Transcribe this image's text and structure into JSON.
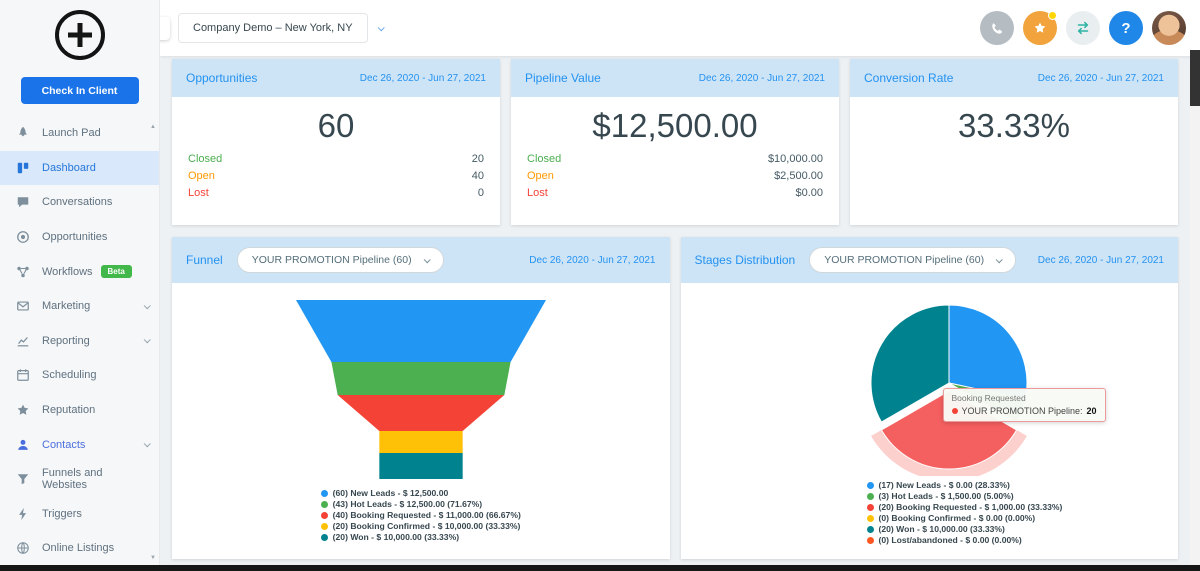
{
  "colors": {
    "accent_blue": "#2492f0",
    "card_header_bg": "#cde4f7",
    "closed": "#4caf50",
    "open": "#ff9800",
    "lost": "#f44336",
    "beta_badge": "#43b84a",
    "check_in_button": "#1a73e8"
  },
  "topbar": {
    "location": "Company Demo – New York, NY",
    "icons": [
      "phone-icon",
      "rewards-icon",
      "switch-accounts-icon",
      "help-icon",
      "avatar"
    ],
    "help_label": "?"
  },
  "sidebar": {
    "check_in_label": "Check In Client",
    "items": [
      {
        "label": "Launch Pad",
        "icon": "rocket-icon"
      },
      {
        "label": "Dashboard",
        "icon": "dashboard-icon",
        "active": true
      },
      {
        "label": "Conversations",
        "icon": "chat-icon"
      },
      {
        "label": "Opportunities",
        "icon": "target-icon"
      },
      {
        "label": "Workflows",
        "icon": "workflow-icon",
        "badge": "Beta"
      },
      {
        "label": "Marketing",
        "icon": "envelope-icon",
        "expandable": true
      },
      {
        "label": "Reporting",
        "icon": "chart-icon",
        "expandable": true
      },
      {
        "label": "Scheduling",
        "icon": "calendar-icon"
      },
      {
        "label": "Reputation",
        "icon": "star-icon"
      },
      {
        "label": "Contacts",
        "icon": "person-icon",
        "expandable": true
      },
      {
        "label": "Funnels and Websites",
        "icon": "funnel-icon"
      },
      {
        "label": "Triggers",
        "icon": "lightning-icon"
      },
      {
        "label": "Online Listings",
        "icon": "globe-icon"
      }
    ]
  },
  "date_range": "Dec 26, 2020 - Jun 27, 2021",
  "stats": [
    {
      "title": "Opportunities",
      "value": "60",
      "rows": [
        {
          "label": "Closed",
          "value": "20"
        },
        {
          "label": "Open",
          "value": "40"
        },
        {
          "label": "Lost",
          "value": "0"
        }
      ]
    },
    {
      "title": "Pipeline Value",
      "value": "$12,500.00",
      "rows": [
        {
          "label": "Closed",
          "value": "$10,000.00"
        },
        {
          "label": "Open",
          "value": "$2,500.00"
        },
        {
          "label": "Lost",
          "value": "$0.00"
        }
      ]
    },
    {
      "title": "Conversion Rate",
      "value": "33.33%"
    }
  ],
  "funnel_card": {
    "title": "Funnel",
    "selector": "YOUR PROMOTION Pipeline (60)",
    "legend": [
      "(60) New Leads - $ 12,500.00",
      "(43) Hot Leads - $ 12,500.00 (71.67%)",
      "(40) Booking Requested - $ 11,000.00 (66.67%)",
      "(20) Booking Confirmed - $ 10,000.00 (33.33%)",
      "(20) Won - $ 10,000.00 (33.33%)"
    ]
  },
  "stages_card": {
    "title": "Stages Distribution",
    "selector": "YOUR PROMOTION Pipeline (60)",
    "tooltip": {
      "title": "Booking Requested",
      "series": "YOUR PROMOTION Pipeline:",
      "value": "20"
    },
    "legend": [
      "(17) New Leads - $ 0.00 (28.33%)",
      "(3) Hot Leads - $ 1,500.00 (5.00%)",
      "(20) Booking Requested - $ 1,000.00 (33.33%)",
      "(0) Booking Confirmed - $ 0.00 (0.00%)",
      "(20) Won - $ 10,000.00 (33.33%)",
      "(0) Lost/abandoned - $ 0.00 (0.00%)"
    ]
  },
  "chart_data": [
    {
      "type": "funnel",
      "title": "Funnel",
      "pipeline": "YOUR PROMOTION Pipeline",
      "stages": [
        "New Leads",
        "Hot Leads",
        "Booking Requested",
        "Booking Confirmed",
        "Won"
      ],
      "values": [
        60,
        43,
        40,
        20,
        20
      ],
      "amounts": [
        12500,
        12500,
        11000,
        10000,
        10000
      ],
      "percent_of_first": [
        100,
        71.67,
        66.67,
        33.33,
        33.33
      ],
      "colors": [
        "#2196f3",
        "#4caf50",
        "#f44336",
        "#ffc107",
        "#00838f"
      ]
    },
    {
      "type": "pie",
      "title": "Stages Distribution",
      "pipeline": "YOUR PROMOTION Pipeline",
      "labels": [
        "New Leads",
        "Hot Leads",
        "Booking Requested",
        "Booking Confirmed",
        "Won",
        "Lost/abandoned"
      ],
      "values": [
        17,
        3,
        20,
        0,
        20,
        0
      ],
      "amounts": [
        0,
        1500,
        1000,
        0,
        10000,
        0
      ],
      "percentages": [
        28.33,
        5.0,
        33.33,
        0.0,
        33.33,
        0.0
      ],
      "colors": [
        "#2196f3",
        "#4caf50",
        "#f44336",
        "#ffc107",
        "#00838f",
        "#ff5722"
      ],
      "highlighted": "Booking Requested"
    }
  ]
}
